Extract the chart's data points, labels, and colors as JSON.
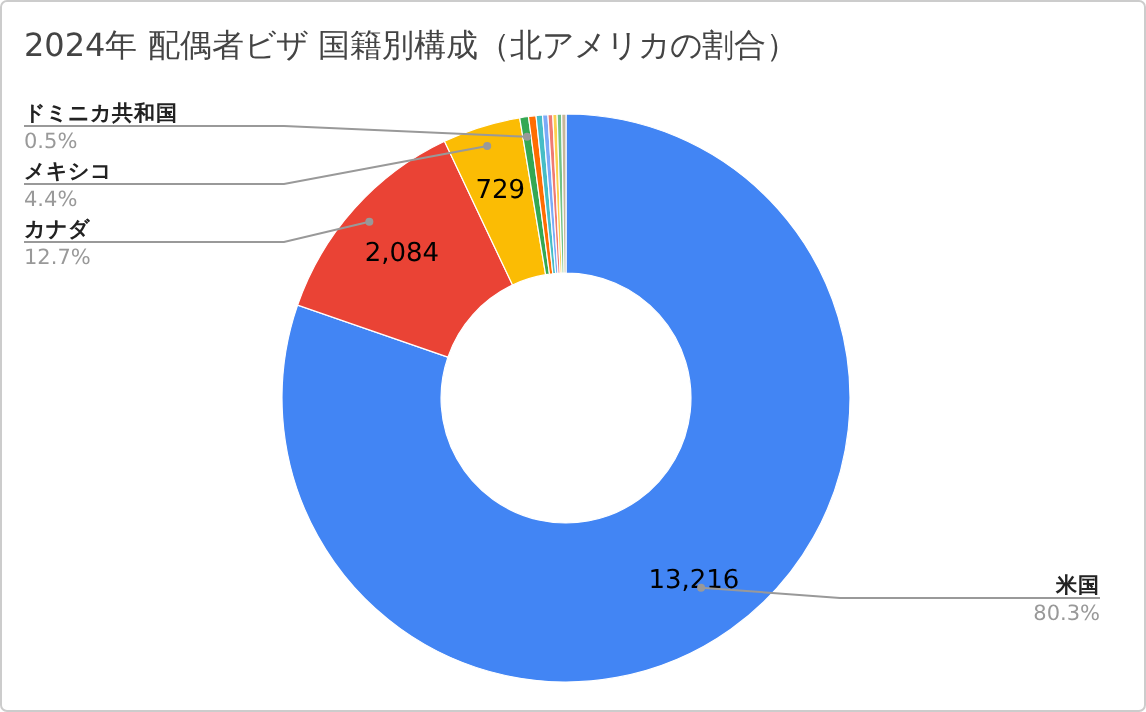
{
  "chart_data": {
    "type": "donut",
    "title": "2024年 配偶者ビザ 国籍別構成（北アメリカの割合）",
    "categories": [
      "米国",
      "カナダ",
      "メキシコ",
      "ドミニカ共和国",
      null,
      null,
      null,
      null,
      null,
      null,
      null
    ],
    "values": [
      13216,
      2084,
      729,
      82,
      70,
      60,
      50,
      45,
      40,
      42,
      40
    ],
    "colors": [
      "#4285f4",
      "#ea4335",
      "#fbbc04",
      "#34a853",
      "#ff6d01",
      "#46bdc6",
      "#7baaf7",
      "#f07b72",
      "#fcd04f",
      "#71c287",
      "#c6b79b"
    ],
    "value_labels": [
      "13,216",
      "2,084",
      "729",
      null,
      null,
      null,
      null,
      null,
      null,
      null,
      null
    ],
    "annotations": [
      "80.3%",
      "12.7%",
      "4.4%",
      "0.5%"
    ],
    "legend": false
  }
}
